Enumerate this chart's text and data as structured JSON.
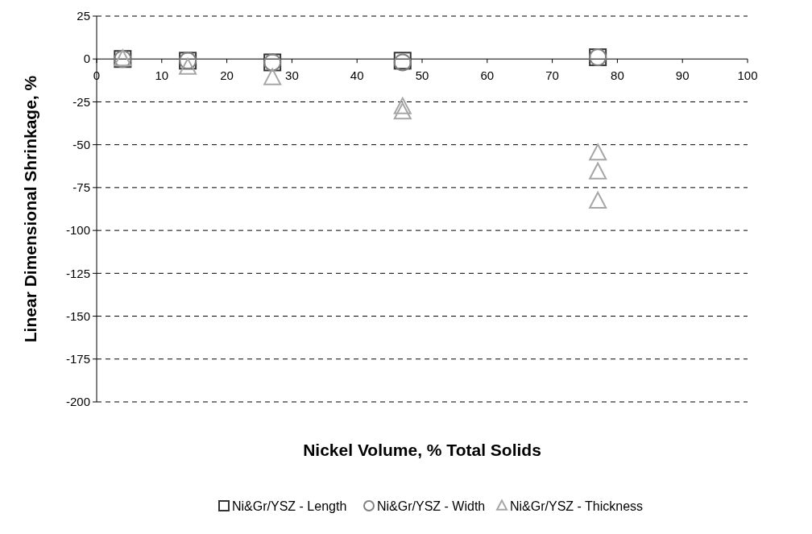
{
  "chart_data": {
    "type": "scatter",
    "xlabel": "Nickel Volume, % Total Solids",
    "ylabel": "Linear Dimensional Shrinkage, %",
    "xlim": [
      0,
      100
    ],
    "xticks": [
      0,
      10,
      20,
      30,
      40,
      50,
      60,
      70,
      80,
      90,
      100
    ],
    "ylim": [
      -200,
      25
    ],
    "yticks": [
      -200,
      -175,
      -150,
      -125,
      -100,
      -75,
      -50,
      -25,
      0,
      25
    ],
    "grid": "y",
    "legend": "bottom",
    "series": [
      {
        "name": "Ni&Gr/YSZ - Length",
        "color": "#333333",
        "marker": "square",
        "x": [
          4,
          14,
          27,
          47,
          77
        ],
        "values": [
          0,
          -1,
          -2,
          -1,
          1
        ]
      },
      {
        "name": "Ni&Gr/YSZ - Width",
        "color": "#808080",
        "marker": "circle",
        "x": [
          4,
          14,
          27,
          47,
          77
        ],
        "values": [
          0,
          -1,
          -2,
          -2,
          1
        ]
      },
      {
        "name": "Ni&Gr/YSZ - Thickness",
        "color": "#a6a6a6",
        "marker": "triangle",
        "x": [
          4,
          14,
          27,
          47,
          47,
          77,
          77,
          77
        ],
        "values": [
          0,
          -5,
          -11,
          -28,
          -31,
          -55,
          -66,
          -83
        ]
      }
    ]
  }
}
